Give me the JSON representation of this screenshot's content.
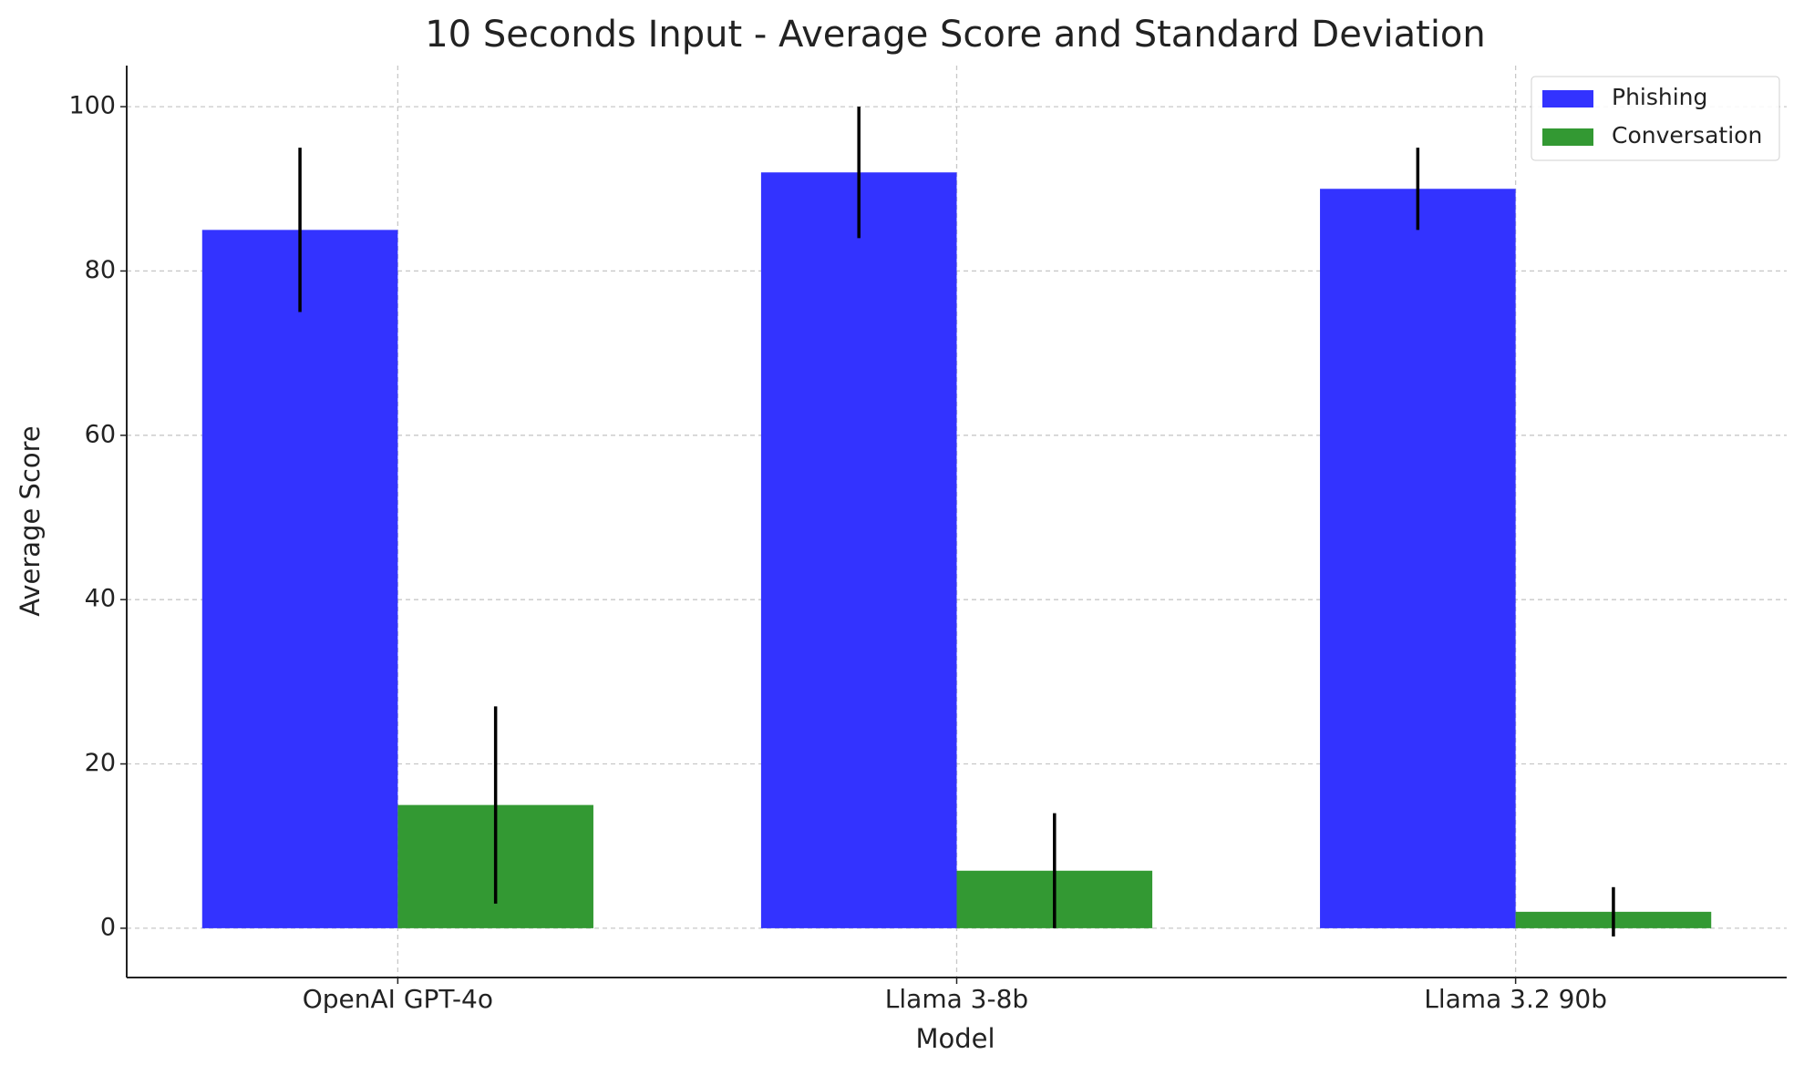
{
  "chart_data": {
    "type": "bar",
    "title": "10 Seconds Input - Average Score and Standard Deviation",
    "x_label": "Model",
    "y_label": "Average Score",
    "categories": [
      "OpenAI GPT-4o",
      "Llama 3-8b",
      "Llama 3.2 90b"
    ],
    "series": [
      {
        "name": "Phishing",
        "color": "#3333ff",
        "values": [
          85,
          92,
          90
        ],
        "errors": [
          10,
          8,
          5
        ]
      },
      {
        "name": "Conversation",
        "color": "#339933",
        "values": [
          15,
          7,
          2
        ],
        "errors": [
          12,
          7,
          3
        ]
      }
    ],
    "ylim": [
      -6,
      105
    ],
    "yticks": [
      0,
      20,
      40,
      60,
      80,
      100
    ],
    "grid": true,
    "legend": "upper right"
  }
}
